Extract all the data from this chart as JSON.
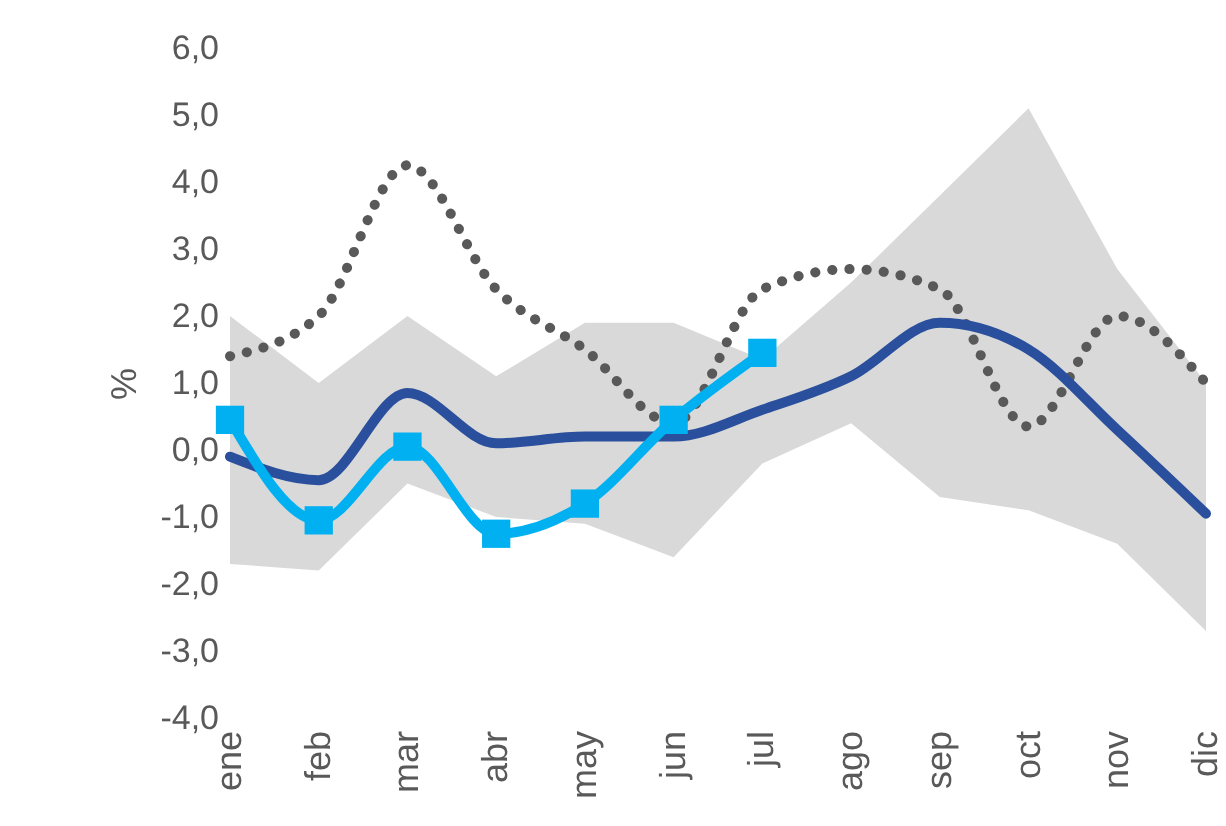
{
  "chart_data": {
    "type": "line",
    "ylabel": "%",
    "categories": [
      "ene",
      "feb",
      "mar",
      "abr",
      "may",
      "jun",
      "jul",
      "ago",
      "sep",
      "oct",
      "nov",
      "dic"
    ],
    "ylim": [
      -4.0,
      6.0
    ],
    "yticks": [
      {
        "value": -4,
        "label": "-4,0"
      },
      {
        "value": -3,
        "label": "-3,0"
      },
      {
        "value": -2,
        "label": "-2,0"
      },
      {
        "value": -1,
        "label": "-1,0"
      },
      {
        "value": 0,
        "label": "0,0"
      },
      {
        "value": 1,
        "label": "1,0"
      },
      {
        "value": 2,
        "label": "2,0"
      },
      {
        "value": 3,
        "label": "3,0"
      },
      {
        "value": 4,
        "label": "4,0"
      },
      {
        "value": 5,
        "label": "5,0"
      },
      {
        "value": 6,
        "label": "6,0"
      }
    ],
    "grid": false,
    "series": [
      {
        "color": "#595959",
        "line_style": "dotted",
        "marker": "none",
        "values": [
          1.4,
          2.0,
          4.25,
          2.4,
          1.5,
          0.4,
          2.4,
          2.7,
          2.4,
          0.35,
          2.0,
          1.0
        ]
      },
      {
        "color": "#2a4f9c",
        "line_style": "solid",
        "marker": "none",
        "values": [
          -0.1,
          -0.45,
          0.85,
          0.1,
          0.2,
          0.2,
          0.6,
          1.1,
          1.9,
          1.5,
          0.3,
          -0.95
        ],
        "lower": [
          -1.7,
          -1.8,
          -0.5,
          -1.0,
          -1.1,
          -1.6,
          -0.2,
          0.4,
          -0.7,
          -0.9,
          -1.4,
          -2.7
        ],
        "upper": [
          2.0,
          1.0,
          2.0,
          1.1,
          1.9,
          1.9,
          1.35,
          2.5,
          3.8,
          5.1,
          2.7,
          1.0
        ]
      },
      {
        "color": "#00b0f0",
        "line_style": "solid",
        "marker": "square",
        "values": [
          0.45,
          -1.05,
          0.05,
          -1.25,
          -0.8,
          0.45,
          1.45,
          null,
          null,
          null,
          null,
          null
        ]
      }
    ]
  }
}
